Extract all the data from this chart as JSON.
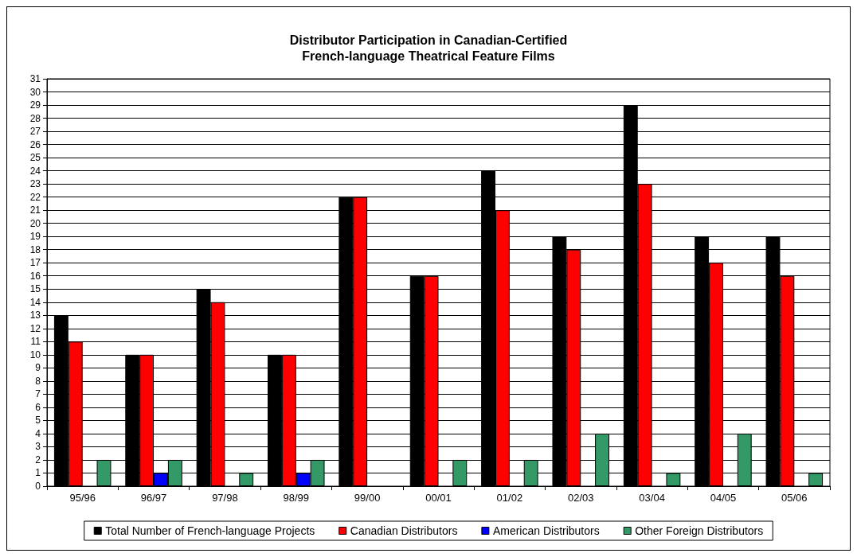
{
  "chart_data": {
    "type": "bar",
    "title": "Distributor Participation in Canadian-Certified\nFrench-language Theatrical Feature Films",
    "categories": [
      "95/96",
      "96/97",
      "97/98",
      "98/99",
      "99/00",
      "00/01",
      "01/02",
      "02/03",
      "03/04",
      "04/05",
      "05/06"
    ],
    "series": [
      {
        "name": "Total Number of French-language Projects",
        "color": "#000000",
        "values": [
          13,
          10,
          15,
          10,
          22,
          16,
          24,
          19,
          29,
          19,
          19
        ]
      },
      {
        "name": "Canadian Distributors",
        "color": "#ff0000",
        "values": [
          11,
          10,
          14,
          10,
          22,
          16,
          21,
          18,
          23,
          17,
          16
        ]
      },
      {
        "name": "American Distributors",
        "color": "#0000ff",
        "values": [
          0,
          1,
          0,
          1,
          0,
          0,
          0,
          0,
          0,
          0,
          0
        ]
      },
      {
        "name": "Other Foreign Distributors",
        "color": "#339966",
        "values": [
          2,
          2,
          1,
          2,
          0,
          2,
          2,
          4,
          1,
          4,
          1
        ]
      }
    ],
    "ylim": [
      0,
      31
    ],
    "yticks": [
      0,
      1,
      2,
      3,
      4,
      5,
      6,
      7,
      8,
      9,
      10,
      11,
      12,
      13,
      14,
      15,
      16,
      17,
      18,
      19,
      20,
      21,
      22,
      23,
      24,
      25,
      26,
      27,
      28,
      29,
      30,
      31
    ],
    "grid": "y",
    "legend": "bottom"
  }
}
